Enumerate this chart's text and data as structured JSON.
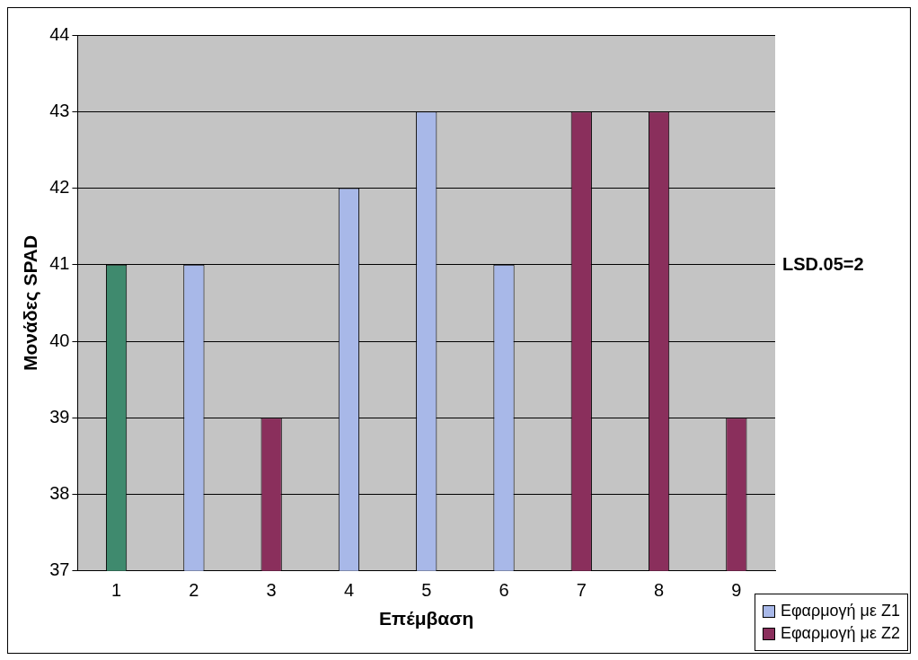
{
  "chart_data": {
    "type": "bar",
    "xlabel": "Επέμβαση",
    "ylabel": "Μονάδες SPAD",
    "categories": [
      "1",
      "2",
      "3",
      "4",
      "5",
      "6",
      "7",
      "8",
      "9"
    ],
    "series": [
      {
        "color": "#3f8a6e",
        "values": [
          41,
          null,
          null,
          null,
          null,
          null,
          null,
          null,
          null
        ]
      },
      {
        "name": "Εφαρμογή με Z1",
        "color": "#a8b8e8",
        "values": [
          null,
          41,
          null,
          42,
          43,
          41,
          null,
          null,
          null
        ]
      },
      {
        "name": "Εφαρμογή με Z2",
        "color": "#8a2f5c",
        "values": [
          null,
          null,
          39,
          null,
          null,
          null,
          43,
          43,
          39
        ]
      }
    ],
    "ylim": [
      37,
      44
    ],
    "yticks": [
      37,
      38,
      39,
      40,
      41,
      42,
      43,
      44
    ],
    "grid": "y",
    "legend": "bottom right",
    "annotations": [
      "LSD.05=2"
    ]
  }
}
